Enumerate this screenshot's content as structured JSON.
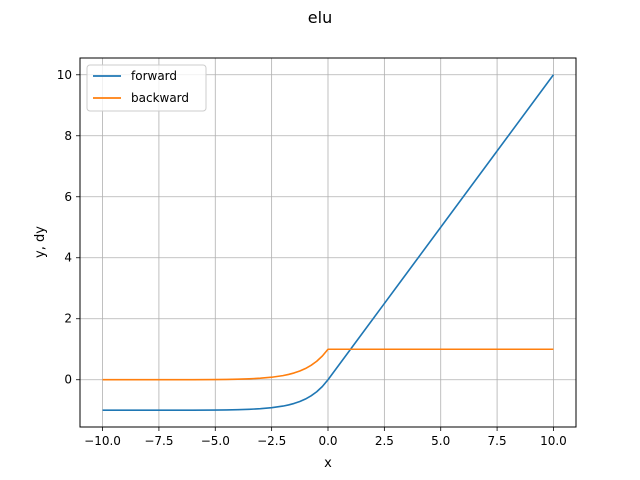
{
  "chart_data": {
    "type": "line",
    "title": "elu",
    "xlabel": "x",
    "ylabel": "y, dy",
    "xlim": [
      -11.0,
      11.0
    ],
    "ylim": [
      -1.55,
      10.55
    ],
    "grid": true,
    "legend_position": "top-left",
    "x_ticks": [
      -10,
      -7.5,
      -5,
      -2.5,
      0,
      2.5,
      5,
      7.5,
      10
    ],
    "x_tick_labels": [
      "−10.0",
      "−7.5",
      "−5.0",
      "−2.5",
      "0.0",
      "2.5",
      "5.0",
      "7.5",
      "10.0"
    ],
    "y_ticks": [
      0,
      2,
      4,
      6,
      8,
      10
    ],
    "y_tick_labels": [
      "0",
      "2",
      "4",
      "6",
      "8",
      "10"
    ],
    "series": [
      {
        "name": "forward",
        "color": "#1f77b4",
        "x": [
          -10,
          -9,
          -8,
          -7,
          -6,
          -5,
          -4.5,
          -4,
          -3.5,
          -3,
          -2.5,
          -2,
          -1.75,
          -1.5,
          -1.25,
          -1,
          -0.75,
          -0.5,
          -0.25,
          0,
          1,
          2,
          3,
          4,
          5,
          6,
          7,
          8,
          9,
          10
        ],
        "y": [
          -1.0,
          -0.9999,
          -0.9997,
          -0.9991,
          -0.9975,
          -0.9933,
          -0.9889,
          -0.9817,
          -0.9698,
          -0.9502,
          -0.9179,
          -0.8647,
          -0.8262,
          -0.7769,
          -0.7135,
          -0.6321,
          -0.5276,
          -0.3935,
          -0.2212,
          0,
          1,
          2,
          3,
          4,
          5,
          6,
          7,
          8,
          9,
          10
        ]
      },
      {
        "name": "backward",
        "color": "#ff7f0e",
        "x": [
          -10,
          -9,
          -8,
          -7,
          -6,
          -5,
          -4.5,
          -4,
          -3.5,
          -3,
          -2.5,
          -2,
          -1.75,
          -1.5,
          -1.25,
          -1,
          -0.75,
          -0.5,
          -0.25,
          0,
          0.01,
          1,
          2,
          3,
          4,
          5,
          6,
          7,
          8,
          9,
          10
        ],
        "y": [
          0.0,
          0.0001,
          0.0003,
          0.0009,
          0.0025,
          0.0067,
          0.0111,
          0.0183,
          0.0302,
          0.0498,
          0.0821,
          0.1353,
          0.1738,
          0.2231,
          0.2865,
          0.3679,
          0.4724,
          0.6065,
          0.7788,
          1,
          1,
          1,
          1,
          1,
          1,
          1,
          1,
          1,
          1,
          1,
          1
        ]
      }
    ]
  }
}
